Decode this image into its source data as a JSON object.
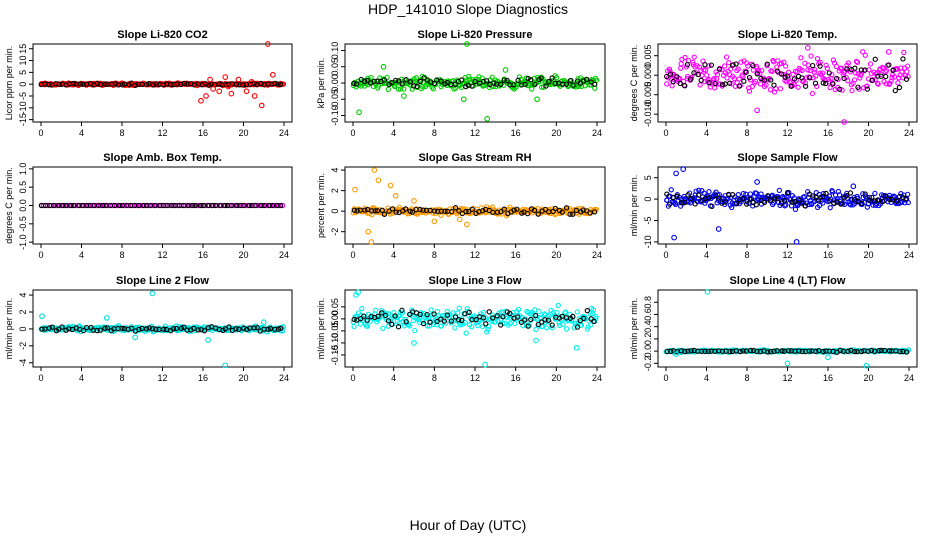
{
  "figure": {
    "title": "HDP_141010  Slope Diagnostics",
    "xlabel": "Hour of Day (UTC)"
  },
  "chart_data": [
    {
      "type": "scatter",
      "title": "Slope Li-820 CO2",
      "ylabel": "Licor ppm per min.",
      "color": "#ff0000",
      "xlim": [
        0,
        24
      ],
      "ylim": [
        -16,
        17
      ],
      "xticks": [
        "0",
        "4",
        "8",
        "12",
        "16",
        "20",
        "24"
      ],
      "yticks": [
        -15,
        -10,
        -5,
        0,
        5,
        10,
        15
      ],
      "ytick_labels": [
        "-15",
        "-10",
        "-5",
        "0",
        "5",
        "10",
        "15"
      ],
      "spread": 0.4,
      "outlier_spread": 5,
      "outliers": [
        [
          15.8,
          -7
        ],
        [
          16.3,
          -5
        ],
        [
          17,
          -2
        ],
        [
          17.6,
          -3
        ],
        [
          18.2,
          3
        ],
        [
          18.8,
          -4
        ],
        [
          19.5,
          2
        ],
        [
          20.3,
          -3
        ],
        [
          21.1,
          -5
        ],
        [
          21.8,
          -9
        ],
        [
          22.4,
          17
        ],
        [
          22.9,
          4
        ],
        [
          16.7,
          2
        ],
        [
          18.5,
          -1
        ],
        [
          20.8,
          1
        ]
      ]
    },
    {
      "type": "scatter",
      "title": "Slope Li-820 Pressure",
      "ylabel": "kPa per min.",
      "color": "#00cc00",
      "xlim": [
        0,
        24
      ],
      "ylim": [
        -0.12,
        0.12
      ],
      "xticks": [
        "0",
        "4",
        "8",
        "12",
        "16",
        "20",
        "24"
      ],
      "yticks": [
        -0.1,
        -0.05,
        0,
        0.05,
        0.1
      ],
      "ytick_labels": [
        "-0.10",
        "-0.05",
        "0.00",
        "0.05",
        "0.10"
      ],
      "spread": 0.015,
      "outlier_spread": 0.04,
      "outliers": [
        [
          0.6,
          -0.09
        ],
        [
          10.9,
          -0.05
        ],
        [
          11.2,
          0.12
        ],
        [
          13.2,
          -0.11
        ],
        [
          18.1,
          -0.05
        ],
        [
          3,
          0.05
        ],
        [
          5,
          -0.04
        ],
        [
          15,
          0.04
        ]
      ]
    },
    {
      "type": "scatter",
      "title": "Slope Li-820 Temp.",
      "ylabel": "degrees C per min.",
      "color": "#ff00ff",
      "xlim": [
        0,
        24
      ],
      "ylim": [
        -0.012,
        0.008
      ],
      "xticks": [
        "0",
        "4",
        "8",
        "12",
        "16",
        "20",
        "24"
      ],
      "yticks": [
        -0.01,
        -0.005,
        0,
        0.005
      ],
      "ytick_labels": [
        "-0.010",
        "-0.005",
        "0.000",
        "0.005"
      ],
      "spread": 0.004,
      "outlier_spread": 0.004,
      "outliers": [
        [
          17.6,
          -0.012
        ],
        [
          9,
          -0.009
        ],
        [
          14,
          0.007
        ],
        [
          22,
          0.006
        ]
      ]
    },
    {
      "type": "scatter",
      "title": "Slope Amb. Box Temp.",
      "ylabel": "degrees C per min.",
      "color": "#cc00cc",
      "xlim": [
        0,
        24
      ],
      "ylim": [
        -1.05,
        1.05
      ],
      "xticks": [
        "0",
        "4",
        "8",
        "12",
        "16",
        "20",
        "24"
      ],
      "yticks": [
        -1,
        -0.5,
        0,
        0.5,
        1
      ],
      "ytick_labels": [
        "-1.0",
        "-0.5",
        "0.0",
        "0.5",
        "1.0"
      ],
      "spread": 0.0,
      "outlier_spread": 0,
      "outliers": []
    },
    {
      "type": "scatter",
      "title": "Slope Gas Stream RH",
      "ylabel": "percent per min.",
      "color": "#ff9900",
      "xlim": [
        0,
        24
      ],
      "ylim": [
        -3.2,
        4.3
      ],
      "xticks": [
        "0",
        "4",
        "8",
        "12",
        "16",
        "20",
        "24"
      ],
      "yticks": [
        -2,
        0,
        2,
        4
      ],
      "ytick_labels": [
        "-2",
        "0",
        "2",
        "4"
      ],
      "spread": 0.3,
      "outlier_spread": 1.2,
      "outliers": [
        [
          0.2,
          2.1
        ],
        [
          1.5,
          -2
        ],
        [
          1.8,
          -3
        ],
        [
          2.1,
          4
        ],
        [
          2.5,
          3
        ],
        [
          3.7,
          2.5
        ],
        [
          4.2,
          1.5
        ],
        [
          10.5,
          -0.8
        ],
        [
          11.2,
          -1.3
        ],
        [
          6,
          1
        ],
        [
          8,
          -1
        ]
      ]
    },
    {
      "type": "scatter",
      "title": "Slope Sample Flow",
      "ylabel": "ml/min per min.",
      "color": "#0000ee",
      "xlim": [
        0,
        24
      ],
      "ylim": [
        -10.5,
        7.5
      ],
      "xticks": [
        "0",
        "4",
        "8",
        "12",
        "16",
        "20",
        "24"
      ],
      "yticks": [
        -10,
        -5,
        0,
        5
      ],
      "ytick_labels": [
        "-10",
        "-5",
        "0",
        "5"
      ],
      "spread": 1.6,
      "outlier_spread": 3,
      "outliers": [
        [
          0.8,
          -9
        ],
        [
          1,
          6
        ],
        [
          1.7,
          7
        ],
        [
          12.9,
          -10
        ],
        [
          5.2,
          -7
        ],
        [
          9,
          4
        ],
        [
          18.5,
          3
        ]
      ]
    },
    {
      "type": "scatter",
      "title": "Slope Line 2 Flow",
      "ylabel": "ml/min per min.",
      "color": "#00dddd",
      "xlim": [
        0,
        24
      ],
      "ylim": [
        -4.5,
        4.6
      ],
      "xticks": [
        "0",
        "4",
        "8",
        "12",
        "16",
        "20",
        "24"
      ],
      "yticks": [
        -4,
        -2,
        0,
        2,
        4
      ],
      "ytick_labels": [
        "-4",
        "-2",
        "0",
        "2",
        "4"
      ],
      "spread": 0.25,
      "outlier_spread": 1,
      "outliers": [
        [
          0.1,
          1.5
        ],
        [
          11,
          4.2
        ],
        [
          18.2,
          -4.3
        ],
        [
          9.3,
          -1
        ],
        [
          16.5,
          -1.3
        ],
        [
          6.5,
          1.3
        ],
        [
          22,
          0.8
        ]
      ]
    },
    {
      "type": "scatter",
      "title": "Slope Line 3 Flow",
      "ylabel": "ml/min per min.",
      "color": "#00eeee",
      "xlim": [
        0,
        24
      ],
      "ylim": [
        -0.2,
        0.12
      ],
      "xticks": [
        "0",
        "4",
        "8",
        "12",
        "16",
        "20",
        "24"
      ],
      "yticks": [
        -0.15,
        -0.1,
        -0.05,
        0,
        0.05
      ],
      "ytick_labels": [
        "-0.15",
        "-0.10",
        "-0.05",
        "0.00",
        "0.05"
      ],
      "spread": 0.04,
      "outlier_spread": 0.05,
      "outliers": [
        [
          13,
          -0.19
        ],
        [
          0.3,
          0.1
        ],
        [
          0.5,
          0.11
        ],
        [
          6,
          -0.1
        ],
        [
          18,
          -0.09
        ],
        [
          22,
          -0.12
        ]
      ]
    },
    {
      "type": "scatter",
      "title": "Slope Line 4 (LT) Flow",
      "ylabel": "ml/min per min.",
      "color": "#00dddd",
      "xlim": [
        0,
        24
      ],
      "ylim": [
        -0.26,
        1.0
      ],
      "xticks": [
        "0",
        "4",
        "8",
        "12",
        "16",
        "20",
        "24"
      ],
      "yticks": [
        -0.2,
        0,
        0.2,
        0.4,
        0.6,
        0.8
      ],
      "ytick_labels": [
        "-0.2",
        "0.0",
        "0.2",
        "0.4",
        "0.6",
        "0.8"
      ],
      "spread": 0.015,
      "outlier_spread": 0.05,
      "outliers": [
        [
          4.1,
          0.97
        ],
        [
          12,
          -0.2
        ],
        [
          19.8,
          -0.24
        ],
        [
          1,
          -0.05
        ],
        [
          16,
          -0.1
        ]
      ]
    }
  ]
}
